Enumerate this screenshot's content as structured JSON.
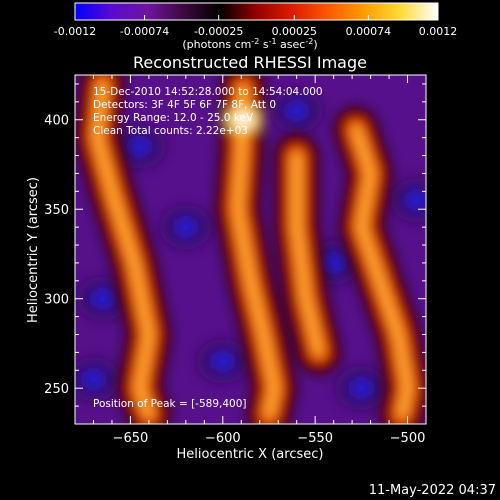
{
  "chart_data": {
    "type": "heatmap",
    "title": "Reconstructed RHESSI Image",
    "xlabel": "Heliocentric X (arcsec)",
    "ylabel": "Heliocentric Y (arcsec)",
    "xlim": [
      -680,
      -490
    ],
    "ylim": [
      230,
      425
    ],
    "x_ticks": [
      -650,
      -600,
      -550,
      -500
    ],
    "y_ticks": [
      250,
      300,
      350,
      400
    ],
    "colorbar": {
      "min": -0.0012,
      "max": 0.0012,
      "ticks": [
        -0.0012,
        -0.00074,
        -0.00025,
        0.00025,
        0.00074,
        0.0012
      ],
      "tick_labels": [
        "-0.0012",
        "-0.00074",
        "-0.00025",
        "0.00025",
        "0.00074",
        "0.0012"
      ],
      "units_text": "(photons cm",
      "units_sup1": "-2",
      "units_mid": " s",
      "units_sup2": "-1",
      "units_end": " asec",
      "units_sup3": "-2",
      "units_close": ")",
      "colormap": [
        "#0000ff",
        "#5a0ad2",
        "#6e14a0",
        "#3c0a3c",
        "#000000",
        "#960000",
        "#dc1e00",
        "#ff5a00",
        "#ffa000",
        "#ffdc3c",
        "#ffffff"
      ]
    },
    "info_lines": [
      "15-Dec-2010 14:52:28.000 to 14:54:04.000",
      "Detectors: 3F 4F 5F 6F 7F 8F, Att 0",
      "Energy Range: 12.0 - 25.0 keV",
      "Clean    Total counts: 2.22e+03"
    ],
    "peak_label": "Position of Peak = [-589,400]",
    "peak": [
      -589,
      400
    ],
    "bright_ridges": [
      {
        "name": "left-ridge",
        "points": [
          [
            -665,
            420
          ],
          [
            -668,
            390
          ],
          [
            -660,
            360
          ],
          [
            -648,
            320
          ],
          [
            -640,
            280
          ],
          [
            -645,
            250
          ],
          [
            -640,
            235
          ]
        ]
      },
      {
        "name": "center-ridge",
        "points": [
          [
            -589,
            418
          ],
          [
            -590,
            380
          ],
          [
            -592,
            350
          ],
          [
            -585,
            310
          ],
          [
            -578,
            280
          ],
          [
            -572,
            250
          ],
          [
            -575,
            235
          ]
        ]
      },
      {
        "name": "mid-right-ridge",
        "points": [
          [
            -560,
            380
          ],
          [
            -560,
            340
          ],
          [
            -555,
            300
          ],
          [
            -548,
            270
          ]
        ]
      },
      {
        "name": "right-ridge",
        "points": [
          [
            -528,
            395
          ],
          [
            -520,
            370
          ],
          [
            -525,
            340
          ],
          [
            -515,
            310
          ],
          [
            -505,
            280
          ],
          [
            -500,
            250
          ],
          [
            -503,
            235
          ]
        ]
      }
    ],
    "dark_regions": [
      {
        "center": [
          -645,
          385
        ]
      },
      {
        "center": [
          -665,
          300
        ]
      },
      {
        "center": [
          -620,
          340
        ]
      },
      {
        "center": [
          -560,
          405
        ]
      },
      {
        "center": [
          -495,
          355
        ]
      },
      {
        "center": [
          -600,
          265
        ]
      },
      {
        "center": [
          -540,
          320
        ]
      },
      {
        "center": [
          -670,
          255
        ]
      },
      {
        "center": [
          -525,
          250
        ]
      }
    ]
  },
  "timestamp": "11-May-2022 04:37"
}
